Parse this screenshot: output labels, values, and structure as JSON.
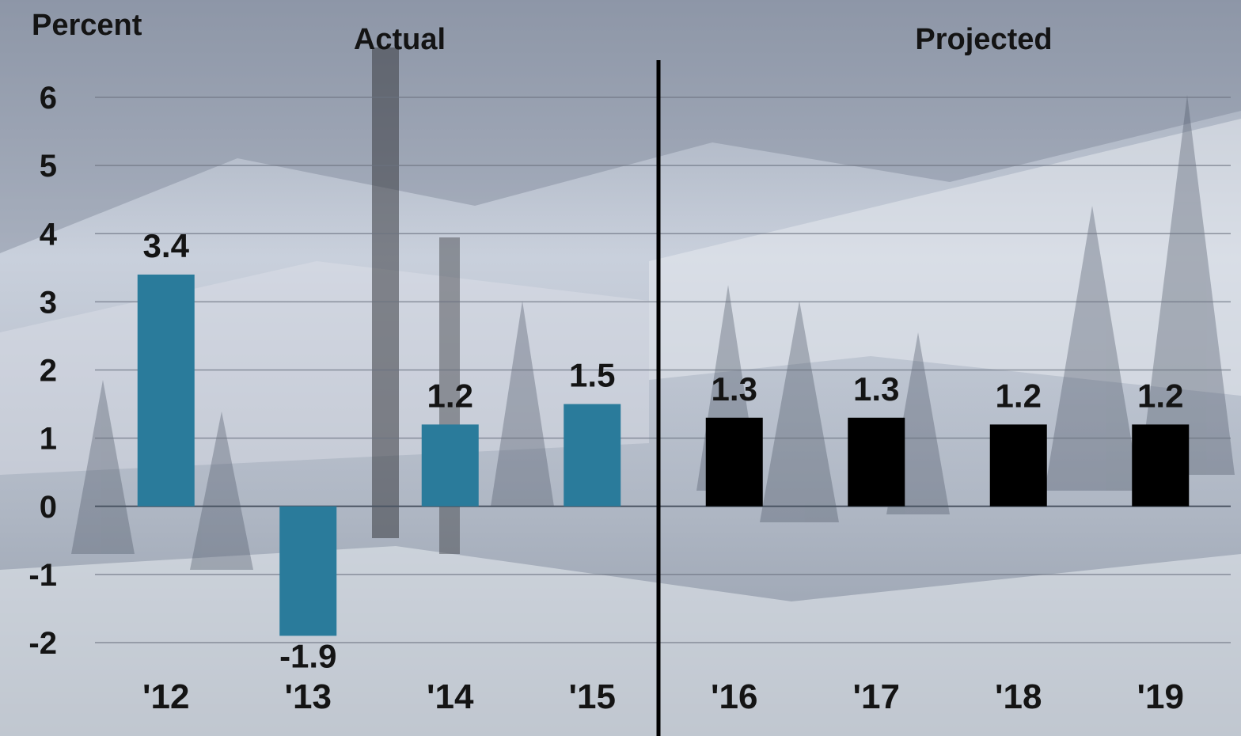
{
  "chart_data": {
    "type": "bar",
    "ylabel": "Percent",
    "ylim": [
      -2,
      6
    ],
    "yticks": [
      6,
      5,
      4,
      3,
      2,
      1,
      0,
      -1,
      -2
    ],
    "grid": true,
    "categories": [
      "'12",
      "'13",
      "'14",
      "'15",
      "'16",
      "'17",
      "'18",
      "'19"
    ],
    "values": [
      3.4,
      -1.9,
      1.2,
      1.5,
      1.3,
      1.3,
      1.2,
      1.2
    ],
    "value_labels": [
      "3.4",
      "-1.9",
      "1.2",
      "1.5",
      "1.3",
      "1.3",
      "1.2",
      "1.2"
    ],
    "panels": [
      {
        "label": "Actual",
        "start": 0,
        "end": 3,
        "color": "#2a7b9b"
      },
      {
        "label": "Projected",
        "start": 4,
        "end": 7,
        "color": "#000000"
      }
    ]
  }
}
